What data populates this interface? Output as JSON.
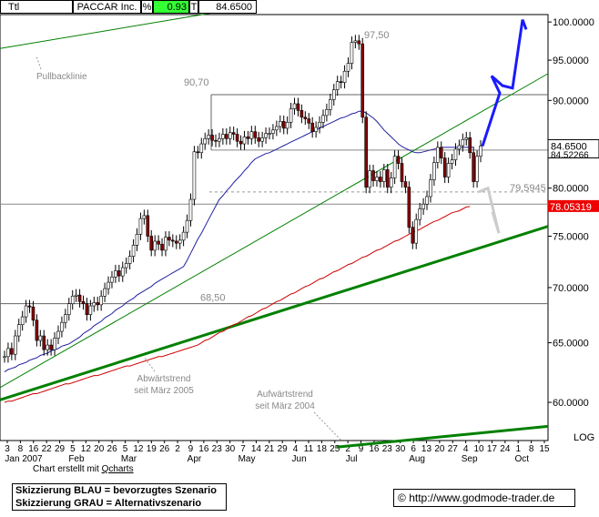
{
  "header": {
    "symbol": "Ttl",
    "name": "PACCAR Inc.",
    "pct_label": "%",
    "pct_value": "0.93",
    "t_label": "T",
    "last_price": "84.6500"
  },
  "colors": {
    "blue_scenario": "#1a1aff",
    "grey_scenario": "#cccccc",
    "trend_green": "#008000",
    "ma_blue": "#2020a0",
    "ma_red": "#cc0000",
    "price_tag_bg": "#ee0000"
  },
  "chart_data": {
    "type": "candlestick",
    "y_scale": "log",
    "ylim": [
      57,
      101
    ],
    "y_ticks": [
      "100.0000",
      "95.0000",
      "90.0000",
      "85.0000",
      "80.0000",
      "75.0000",
      "70.0000",
      "65.0000",
      "60.0000"
    ],
    "y_tick_values": [
      100,
      95,
      90,
      85,
      80,
      75,
      70,
      65,
      60
    ],
    "scale_label": "LOG",
    "x_day_labels": [
      "3",
      "8",
      "16",
      "22",
      "29",
      "5",
      "12",
      "20",
      "26",
      "5",
      "12",
      "19",
      "26",
      "2",
      "9",
      "16",
      "23",
      "30",
      "7",
      "14",
      "21",
      "29",
      "4",
      "11",
      "18",
      "25",
      "2",
      "9",
      "16",
      "23",
      "30",
      "6",
      "13",
      "20",
      "27",
      "4",
      "10",
      "17",
      "24",
      "1",
      "8",
      "15"
    ],
    "x_month_labels": [
      "Jan 2007",
      "Feb",
      "Mar",
      "Apr",
      "May",
      "Jun",
      "Jul",
      "Aug",
      "Sep",
      "Oct"
    ],
    "price_tags": [
      {
        "label": "84.6500",
        "value": 84.65
      },
      {
        "label": "84.52266",
        "value": 84.52
      },
      {
        "label": "78.05319",
        "value": 78.05
      }
    ],
    "levels": [
      {
        "label": "97,50",
        "value": 97.5
      },
      {
        "label": "90,70",
        "value": 90.7
      },
      {
        "label": "79.5945",
        "value": 79.59
      },
      {
        "label": "68,50",
        "value": 68.5
      }
    ],
    "annotations": [
      {
        "text": "Pullbacklinie"
      },
      {
        "text": "Abwärtstrend seit März 2005"
      },
      {
        "text": "Aufwärtstrend seit März 2004"
      }
    ],
    "series": [
      {
        "name": "PACCAR Inc.",
        "close": [
          63.8,
          64.5,
          64.0,
          65.6,
          66.6,
          67.3,
          68.3,
          68.2,
          67.0,
          65.2,
          65.6,
          64.4,
          64.8,
          64.4,
          65.4,
          66.0,
          66.8,
          67.5,
          68.5,
          69.2,
          69.3,
          68.7,
          68.5,
          67.5,
          68.3,
          68.6,
          68.4,
          69.2,
          69.9,
          70.5,
          71.0,
          71.6,
          71.1,
          71.9,
          72.3,
          73.0,
          74.1,
          75.2,
          76.8,
          77.1,
          75.0,
          73.6,
          74.5,
          74.2,
          73.6,
          74.9,
          74.6,
          74.5,
          74.3,
          74.6,
          75.4,
          76.6,
          78.8,
          84.0,
          83.9,
          84.9,
          85.5,
          85.9,
          85.3,
          85.2,
          85.5,
          86.0,
          85.5,
          86.2,
          86.0,
          85.2,
          84.9,
          85.7,
          85.5,
          86.3,
          85.6,
          85.2,
          85.6,
          86.1,
          86.1,
          86.5,
          86.9,
          87.5,
          86.7,
          87.4,
          89.0,
          89.6,
          88.8,
          88.0,
          87.8,
          87.3,
          86.3,
          86.8,
          87.4,
          88.2,
          88.9,
          90.1,
          91.3,
          92.3,
          92.2,
          93.6,
          94.6,
          97.3,
          97.5,
          97.1,
          88.0,
          80.1,
          81.9,
          80.8,
          81.2,
          80.7,
          82.0,
          80.1,
          81.1,
          83.5,
          82.7,
          80.7,
          80.1,
          75.9,
          74.3,
          76.7,
          77.8,
          78.3,
          79.1,
          80.9,
          82.8,
          84.5,
          83.3,
          81.2,
          82.7,
          83.1,
          84.3,
          84.7,
          85.4,
          85.6,
          83.9,
          80.7,
          83.5,
          84.65
        ],
        "sma_slow": [
          60.0,
          60.1,
          60.1,
          60.2,
          60.3,
          60.4,
          60.5,
          60.6,
          60.7,
          60.7,
          60.8,
          60.9,
          61.0,
          61.1,
          61.2,
          61.3,
          61.4,
          61.5,
          61.5,
          61.6,
          61.7,
          61.8,
          61.9,
          62.0,
          62.1,
          62.2,
          62.2,
          62.3,
          62.4,
          62.5,
          62.6,
          62.7,
          62.8,
          62.9,
          63.0,
          63.0,
          63.1,
          63.2,
          63.3,
          63.4,
          63.5,
          63.6,
          63.7,
          63.8,
          63.8,
          63.9,
          64.0,
          64.1,
          64.2,
          64.3,
          64.4,
          64.5,
          64.6,
          64.7,
          64.8,
          65.0,
          65.2,
          65.3,
          65.5,
          65.7,
          65.9,
          66.0,
          66.2,
          66.4,
          66.6,
          66.7,
          66.9,
          67.1,
          67.3,
          67.4,
          67.6,
          67.8,
          68.0,
          68.1,
          68.3,
          68.5,
          68.7,
          68.8,
          69.0,
          69.2,
          69.4,
          69.5,
          69.7,
          69.9,
          70.1,
          70.2,
          70.4,
          70.6,
          70.8,
          70.9,
          71.1,
          71.3,
          71.5,
          71.6,
          71.8,
          72.0,
          72.2,
          72.3,
          72.5,
          72.7,
          72.9,
          73.0,
          73.2,
          73.4,
          73.6,
          73.7,
          73.9,
          74.1,
          74.3,
          74.5,
          74.6,
          74.8,
          75.0,
          75.2,
          75.4,
          75.5,
          75.7,
          75.9,
          76.1,
          76.3,
          76.5,
          76.6,
          76.8,
          77.0,
          77.2,
          77.4,
          77.5,
          77.6,
          77.8,
          78.0,
          78.05
        ],
        "sma_fast": [
          62.5,
          62.7,
          62.8,
          62.9,
          63.1,
          63.2,
          63.3,
          63.5,
          63.6,
          63.7,
          63.9,
          64.0,
          64.1,
          64.3,
          64.4,
          64.5,
          64.7,
          64.8,
          64.9,
          65.1,
          65.3,
          65.5,
          65.8,
          66.0,
          66.2,
          66.5,
          66.7,
          66.9,
          67.2,
          67.4,
          67.6,
          67.9,
          68.1,
          68.3,
          68.6,
          68.8,
          69.0,
          69.3,
          69.5,
          69.7,
          69.9,
          70.1,
          70.4,
          70.6,
          70.8,
          71.0,
          71.2,
          71.4,
          71.6,
          71.8,
          72.0,
          72.6,
          73.3,
          74.0,
          74.7,
          75.3,
          76.0,
          76.7,
          77.4,
          78.1,
          78.8,
          79.2,
          79.7,
          80.1,
          80.6,
          81.0,
          81.4,
          81.9,
          82.3,
          82.8,
          83.2,
          83.4,
          83.6,
          83.8,
          83.9,
          84.1,
          84.3,
          84.5,
          84.7,
          84.9,
          85.1,
          85.3,
          85.5,
          85.7,
          85.9,
          86.1,
          86.3,
          86.5,
          86.7,
          86.9,
          87.1,
          87.3,
          87.5,
          87.7,
          87.9,
          88.0,
          88.2,
          88.4,
          88.5,
          88.7,
          88.7,
          88.5,
          88.2,
          87.9,
          87.5,
          87.0,
          86.5,
          86.1,
          85.7,
          85.3,
          84.9,
          84.6,
          84.4,
          84.2,
          84.0,
          83.9,
          83.9,
          84.0,
          84.1,
          84.2,
          84.3,
          84.4,
          84.5,
          84.5,
          84.5,
          84.5,
          84.5,
          84.5,
          84.5,
          84.5,
          84.5,
          84.52
        ]
      }
    ],
    "scenario_blue": [
      84.65,
      90.9,
      93.0,
      91.5,
      100.3,
      99.0
    ],
    "scenario_grey": [
      79.6,
      80.0,
      75.3,
      77.5
    ]
  },
  "credit": {
    "prefix": "Chart erstellt mit ",
    "tool": "Qcharts"
  },
  "legend": {
    "line1": "Skizzierung BLAU = bevorzugtes Szenario",
    "line2": "Skizzierung GRAU = Alternativszenario"
  },
  "source": {
    "copyright": "©",
    "url": "http://www.godmode-trader.de"
  }
}
